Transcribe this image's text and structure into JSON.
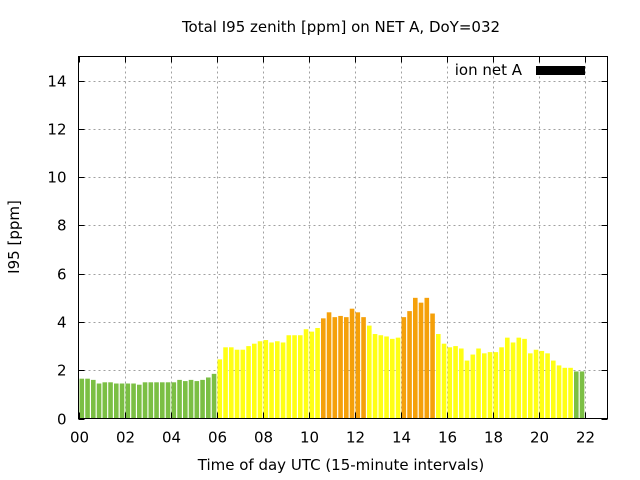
{
  "chart_data": {
    "type": "bar",
    "title": "Total I95 zenith [ppm] on NET A, DoY=032",
    "xlabel": "Time of day UTC (15-minute intervals)",
    "ylabel": "I95 [ppm]",
    "xlim": [
      0,
      23
    ],
    "ylim": [
      0,
      15
    ],
    "x_ticks": [
      "00",
      "02",
      "04",
      "06",
      "08",
      "10",
      "12",
      "14",
      "16",
      "18",
      "20",
      "22"
    ],
    "y_ticks": [
      "0",
      "2",
      "4",
      "6",
      "8",
      "10",
      "12",
      "14"
    ],
    "grid": true,
    "legend": {
      "label": "ion net A",
      "position": "top-right",
      "color": "#000000"
    },
    "interval_hours": 0.25,
    "colors": {
      "green": "#7bbf44",
      "yellow": "#ffff14",
      "orange": "#f5a00a"
    },
    "thresholds": {
      "yellow_from": 2.0,
      "orange_from": 4.0
    },
    "values": [
      1.65,
      1.65,
      1.6,
      1.45,
      1.5,
      1.5,
      1.45,
      1.45,
      1.45,
      1.45,
      1.4,
      1.5,
      1.5,
      1.5,
      1.5,
      1.5,
      1.5,
      1.6,
      1.55,
      1.6,
      1.55,
      1.6,
      1.7,
      1.85,
      2.45,
      2.95,
      2.95,
      2.85,
      2.85,
      3.0,
      3.1,
      3.2,
      3.25,
      3.15,
      3.2,
      3.15,
      3.45,
      3.45,
      3.45,
      3.7,
      3.6,
      3.75,
      4.15,
      4.4,
      4.2,
      4.25,
      4.2,
      4.55,
      4.4,
      4.2,
      3.85,
      3.5,
      3.45,
      3.4,
      3.3,
      3.35,
      4.2,
      4.45,
      5.0,
      4.8,
      5.0,
      4.35,
      3.5,
      3.1,
      2.95,
      3.0,
      2.9,
      2.4,
      2.65,
      2.9,
      2.7,
      2.75,
      2.75,
      2.95,
      3.35,
      3.15,
      3.35,
      3.3,
      2.7,
      2.85,
      2.8,
      2.7,
      2.4,
      2.2,
      2.1,
      2.1,
      1.95,
      1.95
    ]
  }
}
